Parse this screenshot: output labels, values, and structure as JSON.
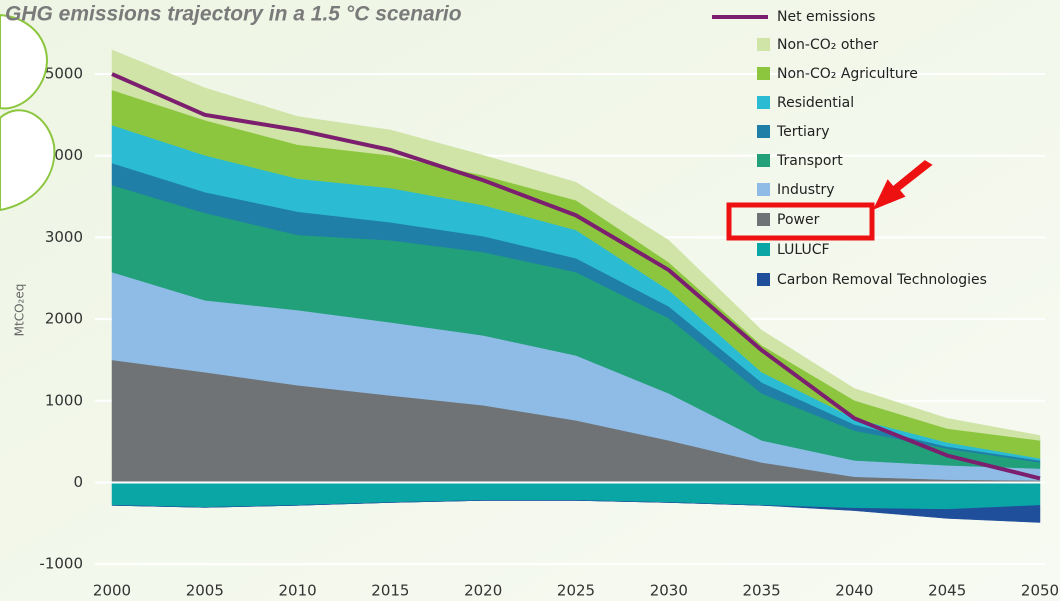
{
  "chart_data": {
    "type": "area",
    "title": "GHG emissions trajectory in a 1.5 °C scenario",
    "y_label": "MtCO₂eq",
    "x": [
      2000,
      2005,
      2010,
      2015,
      2020,
      2025,
      2030,
      2035,
      2040,
      2045,
      2050
    ],
    "xlim": [
      2000,
      2050
    ],
    "xticks": [
      2000,
      2005,
      2010,
      2015,
      2020,
      2025,
      2030,
      2035,
      2040,
      2045,
      2050
    ],
    "ylim": [
      -1200,
      5900
    ],
    "yticks": [
      -1000,
      0,
      1000,
      2000,
      3000,
      4000,
      5000
    ],
    "grid": true,
    "legend": "top-right",
    "series": [
      {
        "name": "Net emissions",
        "type": "line",
        "color": "#7b1f6e",
        "values": [
          5000,
          4500,
          4315,
          4070,
          3700,
          3270,
          2600,
          1620,
          785,
          330,
          50
        ]
      },
      {
        "name": "Non-CO₂ other",
        "type": "area",
        "color": "#cfe4a6",
        "values": [
          490,
          395,
          345,
          310,
          245,
          220,
          270,
          185,
          145,
          125,
          60
        ]
      },
      {
        "name": "Non-CO₂ Agriculture",
        "type": "area",
        "color": "#8cc63f",
        "values": [
          430,
          430,
          415,
          400,
          365,
          365,
          340,
          330,
          220,
          170,
          220
        ]
      },
      {
        "name": "Residential",
        "type": "area",
        "color": "#2bbcd4",
        "values": [
          465,
          450,
          405,
          420,
          380,
          345,
          200,
          125,
          75,
          50,
          25
        ]
      },
      {
        "name": "Tertiary",
        "type": "area",
        "color": "#1f7fa6",
        "values": [
          270,
          255,
          285,
          220,
          195,
          170,
          145,
          135,
          75,
          25,
          25
        ]
      },
      {
        "name": "Transport",
        "type": "area",
        "color": "#21a07a",
        "values": [
          1065,
          1070,
          920,
          1005,
          1020,
          1020,
          920,
          575,
          365,
          205,
          75
        ]
      },
      {
        "name": "Industry",
        "type": "area",
        "color": "#8fbce6",
        "values": [
          1075,
          880,
          920,
          895,
          855,
          795,
          575,
          270,
          200,
          175,
          145
        ]
      },
      {
        "name": "Power",
        "type": "area",
        "color": "#707375",
        "values": [
          1500,
          1350,
          1190,
          1065,
          945,
          760,
          515,
          245,
          70,
          35,
          25
        ]
      },
      {
        "name": "LULUCF",
        "type": "area",
        "color": "#0aa5a5",
        "values": [
          -280,
          -305,
          -280,
          -245,
          -220,
          -220,
          -245,
          -280,
          -315,
          -330,
          -280
        ]
      },
      {
        "name": "Carbon Removal Technologies",
        "type": "area",
        "color": "#1f4e9a",
        "values": [
          0,
          0,
          0,
          0,
          0,
          0,
          0,
          0,
          -30,
          -110,
          -210
        ]
      }
    ]
  }
}
